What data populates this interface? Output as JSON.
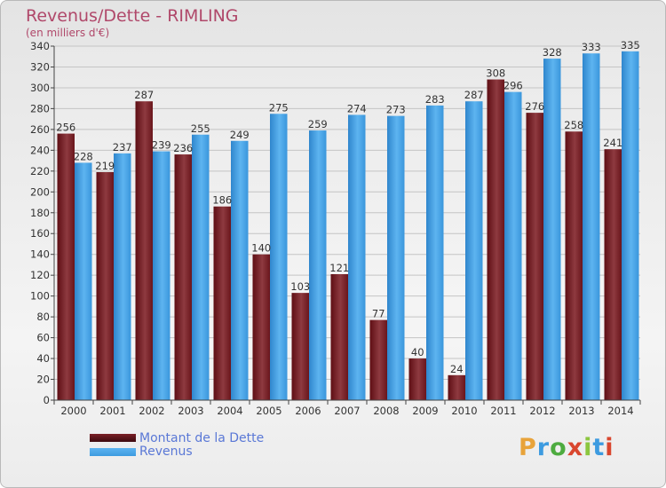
{
  "title": "Revenus/Dette - RIMLING",
  "subtitle": "(en milliers d'€)",
  "logo_text": "Proxiti",
  "colors": {
    "debt": "#7a1f26",
    "revenue": "#3d9be0"
  },
  "chart_data": {
    "type": "bar",
    "categories": [
      "2000",
      "2001",
      "2002",
      "2003",
      "2004",
      "2005",
      "2006",
      "2007",
      "2008",
      "2009",
      "2010",
      "2011",
      "2012",
      "2013",
      "2014"
    ],
    "series": [
      {
        "name": "Montant de la Dette",
        "values": [
          256,
          219,
          287,
          236,
          186,
          140,
          103,
          121,
          77,
          40,
          24,
          308,
          276,
          258,
          241
        ]
      },
      {
        "name": "Revenus",
        "values": [
          228,
          237,
          239,
          255,
          249,
          275,
          259,
          274,
          273,
          283,
          287,
          296,
          328,
          333,
          335
        ]
      }
    ],
    "ylim": [
      0,
      340
    ],
    "yticks": [
      0,
      20,
      40,
      60,
      80,
      100,
      120,
      140,
      160,
      180,
      200,
      220,
      240,
      260,
      280,
      300,
      320,
      340
    ],
    "grid": true,
    "legend_position": "bottom-left"
  }
}
